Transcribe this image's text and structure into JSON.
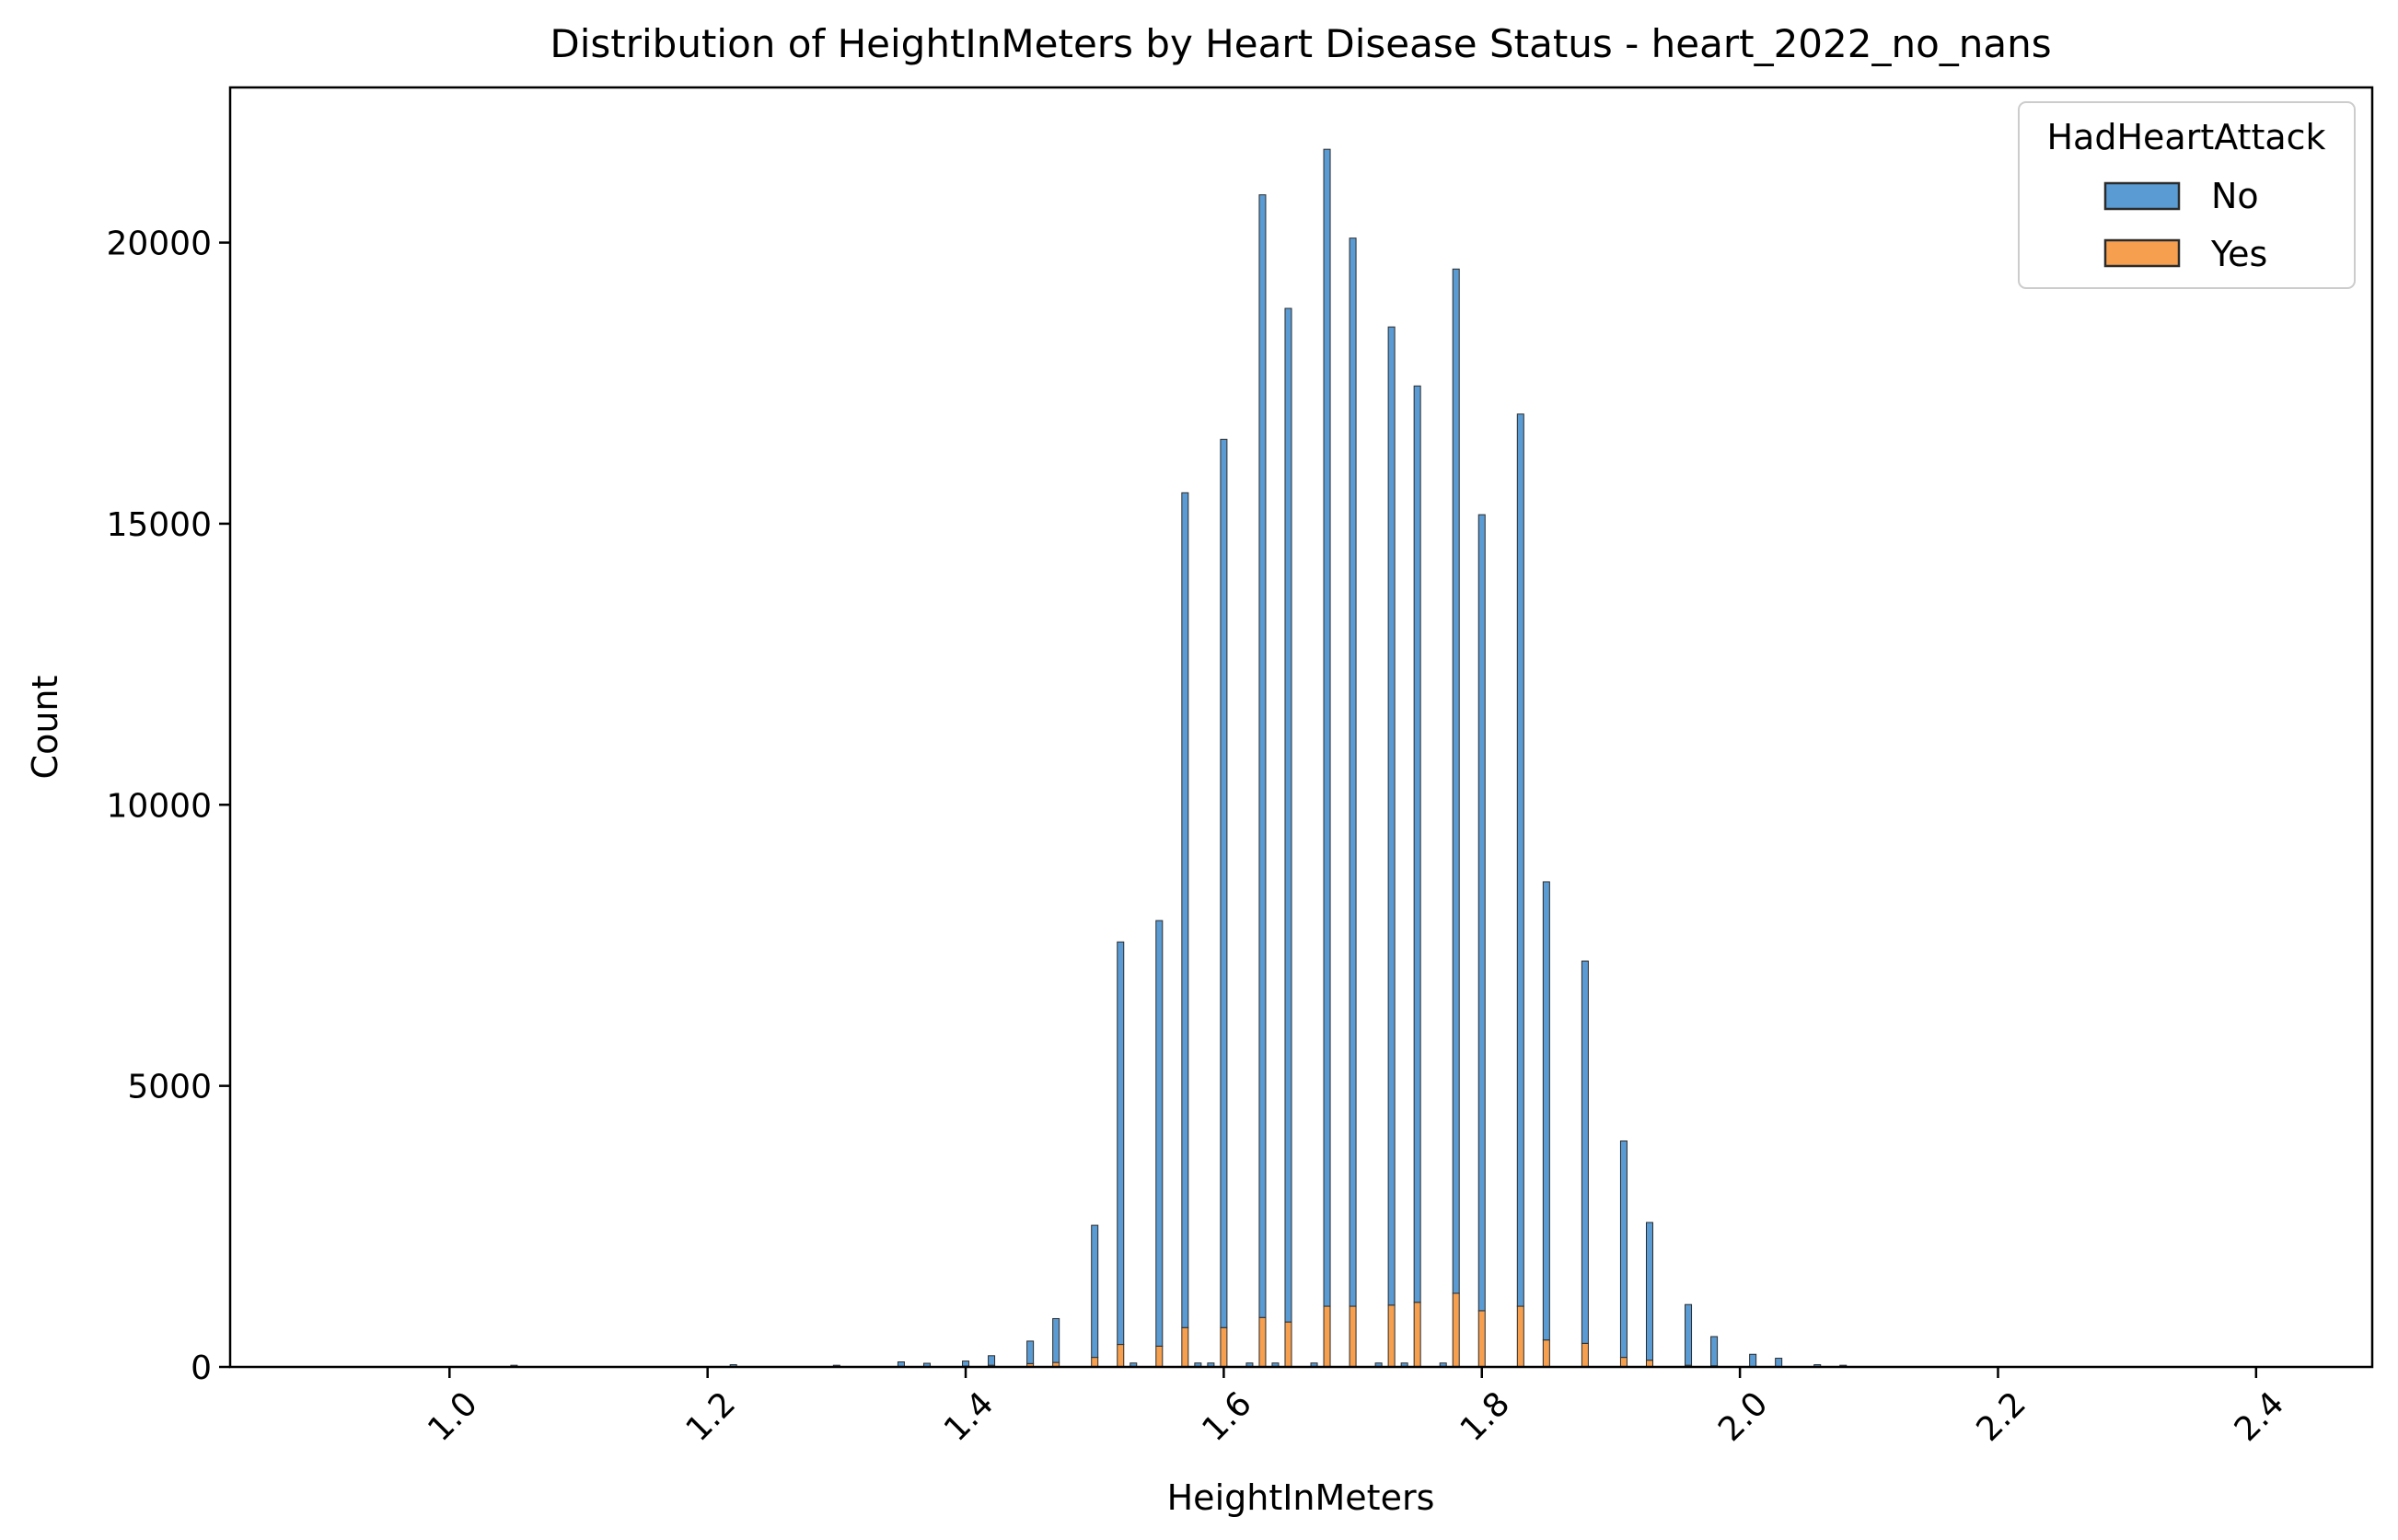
{
  "chart_data": {
    "type": "bar",
    "title": "Distribution of HeightInMeters by Heart Disease Status - heart_2022_no_nans",
    "xlabel": "HeightInMeters",
    "ylabel": "Count",
    "xlim": [
      0.83,
      2.49
    ],
    "ylim": [
      0,
      22760
    ],
    "xticks": [
      1.0,
      1.2,
      1.4,
      1.6,
      1.8,
      2.0,
      2.2,
      2.4
    ],
    "xtick_labels": [
      "1.0",
      "1.2",
      "1.4",
      "1.6",
      "1.8",
      "2.0",
      "2.2",
      "2.4"
    ],
    "yticks": [
      0,
      5000,
      10000,
      15000,
      20000
    ],
    "ytick_labels": [
      "0",
      "5000",
      "10000",
      "15000",
      "20000"
    ],
    "bin_width": 0.005,
    "stacked": true,
    "legend": {
      "title": "HadHeartAttack",
      "position": "top-right"
    },
    "colors": {
      "No": "#5a9bd4",
      "Yes": "#f6a04f",
      "edge": "#2b2b2b"
    },
    "x": [
      1.05,
      1.22,
      1.3,
      1.35,
      1.37,
      1.4,
      1.42,
      1.45,
      1.47,
      1.5,
      1.52,
      1.53,
      1.55,
      1.57,
      1.58,
      1.59,
      1.6,
      1.62,
      1.63,
      1.64,
      1.65,
      1.67,
      1.68,
      1.7,
      1.72,
      1.73,
      1.74,
      1.75,
      1.77,
      1.78,
      1.8,
      1.83,
      1.85,
      1.88,
      1.91,
      1.93,
      1.96,
      1.98,
      2.01,
      2.03,
      2.06,
      2.08
    ],
    "series": [
      {
        "name": "No",
        "values": [
          30,
          40,
          30,
          80,
          60,
          90,
          170,
          400,
          780,
          2350,
          7160,
          60,
          7570,
          14850,
          60,
          60,
          15800,
          60,
          19970,
          60,
          18030,
          60,
          20580,
          19000,
          60,
          17400,
          60,
          16300,
          60,
          18220,
          14160,
          15870,
          8150,
          6800,
          3850,
          2450,
          1080,
          520,
          220,
          150,
          40,
          30
        ]
      },
      {
        "name": "Yes",
        "values": [
          0,
          0,
          0,
          10,
          5,
          15,
          30,
          60,
          80,
          170,
          400,
          10,
          370,
          700,
          10,
          10,
          700,
          10,
          880,
          10,
          800,
          10,
          1080,
          1080,
          10,
          1100,
          10,
          1150,
          10,
          1310,
          1000,
          1080,
          480,
          420,
          170,
          120,
          30,
          20,
          5,
          5,
          0,
          0
        ]
      }
    ]
  }
}
